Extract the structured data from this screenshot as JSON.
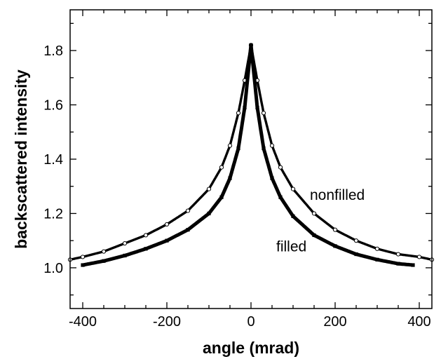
{
  "chart_data": {
    "type": "scatter",
    "title": "",
    "xlabel": "angle (mrad)",
    "ylabel": "backscattered intensity",
    "xlim": [
      -430,
      430
    ],
    "ylim": [
      0.85,
      1.95
    ],
    "grid": false,
    "legend": "none",
    "x_ticks": [
      -400,
      -200,
      0,
      200,
      400
    ],
    "x_tick_labels": [
      "-400",
      "-200",
      "0",
      "200",
      "400"
    ],
    "y_ticks": [
      1.0,
      1.2,
      1.4,
      1.6,
      1.8
    ],
    "y_tick_labels": [
      "1.0",
      "1.2",
      "1.4",
      "1.6",
      "1.8"
    ],
    "series": [
      {
        "name": "nonfilled",
        "marker": "open-circle",
        "x": [
          -430,
          -400,
          -350,
          -300,
          -250,
          -200,
          -150,
          -100,
          -70,
          -50,
          -30,
          -15,
          0,
          15,
          30,
          50,
          70,
          100,
          150,
          200,
          250,
          300,
          350,
          400,
          430
        ],
        "y": [
          1.03,
          1.04,
          1.06,
          1.09,
          1.12,
          1.16,
          1.21,
          1.29,
          1.37,
          1.45,
          1.57,
          1.69,
          1.82,
          1.69,
          1.57,
          1.45,
          1.37,
          1.29,
          1.2,
          1.14,
          1.1,
          1.07,
          1.05,
          1.04,
          1.03
        ]
      },
      {
        "name": "filled",
        "marker": "filled-square",
        "x": [
          -400,
          -350,
          -300,
          -250,
          -200,
          -150,
          -100,
          -70,
          -50,
          -30,
          -15,
          0,
          15,
          30,
          50,
          70,
          100,
          150,
          200,
          250,
          300,
          350,
          385
        ],
        "y": [
          1.01,
          1.025,
          1.045,
          1.07,
          1.1,
          1.14,
          1.2,
          1.26,
          1.33,
          1.44,
          1.59,
          1.82,
          1.59,
          1.44,
          1.33,
          1.26,
          1.19,
          1.12,
          1.08,
          1.05,
          1.03,
          1.015,
          1.01
        ]
      }
    ],
    "annotations": [
      {
        "text": "nonfilled",
        "x": 140,
        "y": 1.25
      },
      {
        "text": "filled",
        "x": 60,
        "y": 1.06
      }
    ]
  }
}
